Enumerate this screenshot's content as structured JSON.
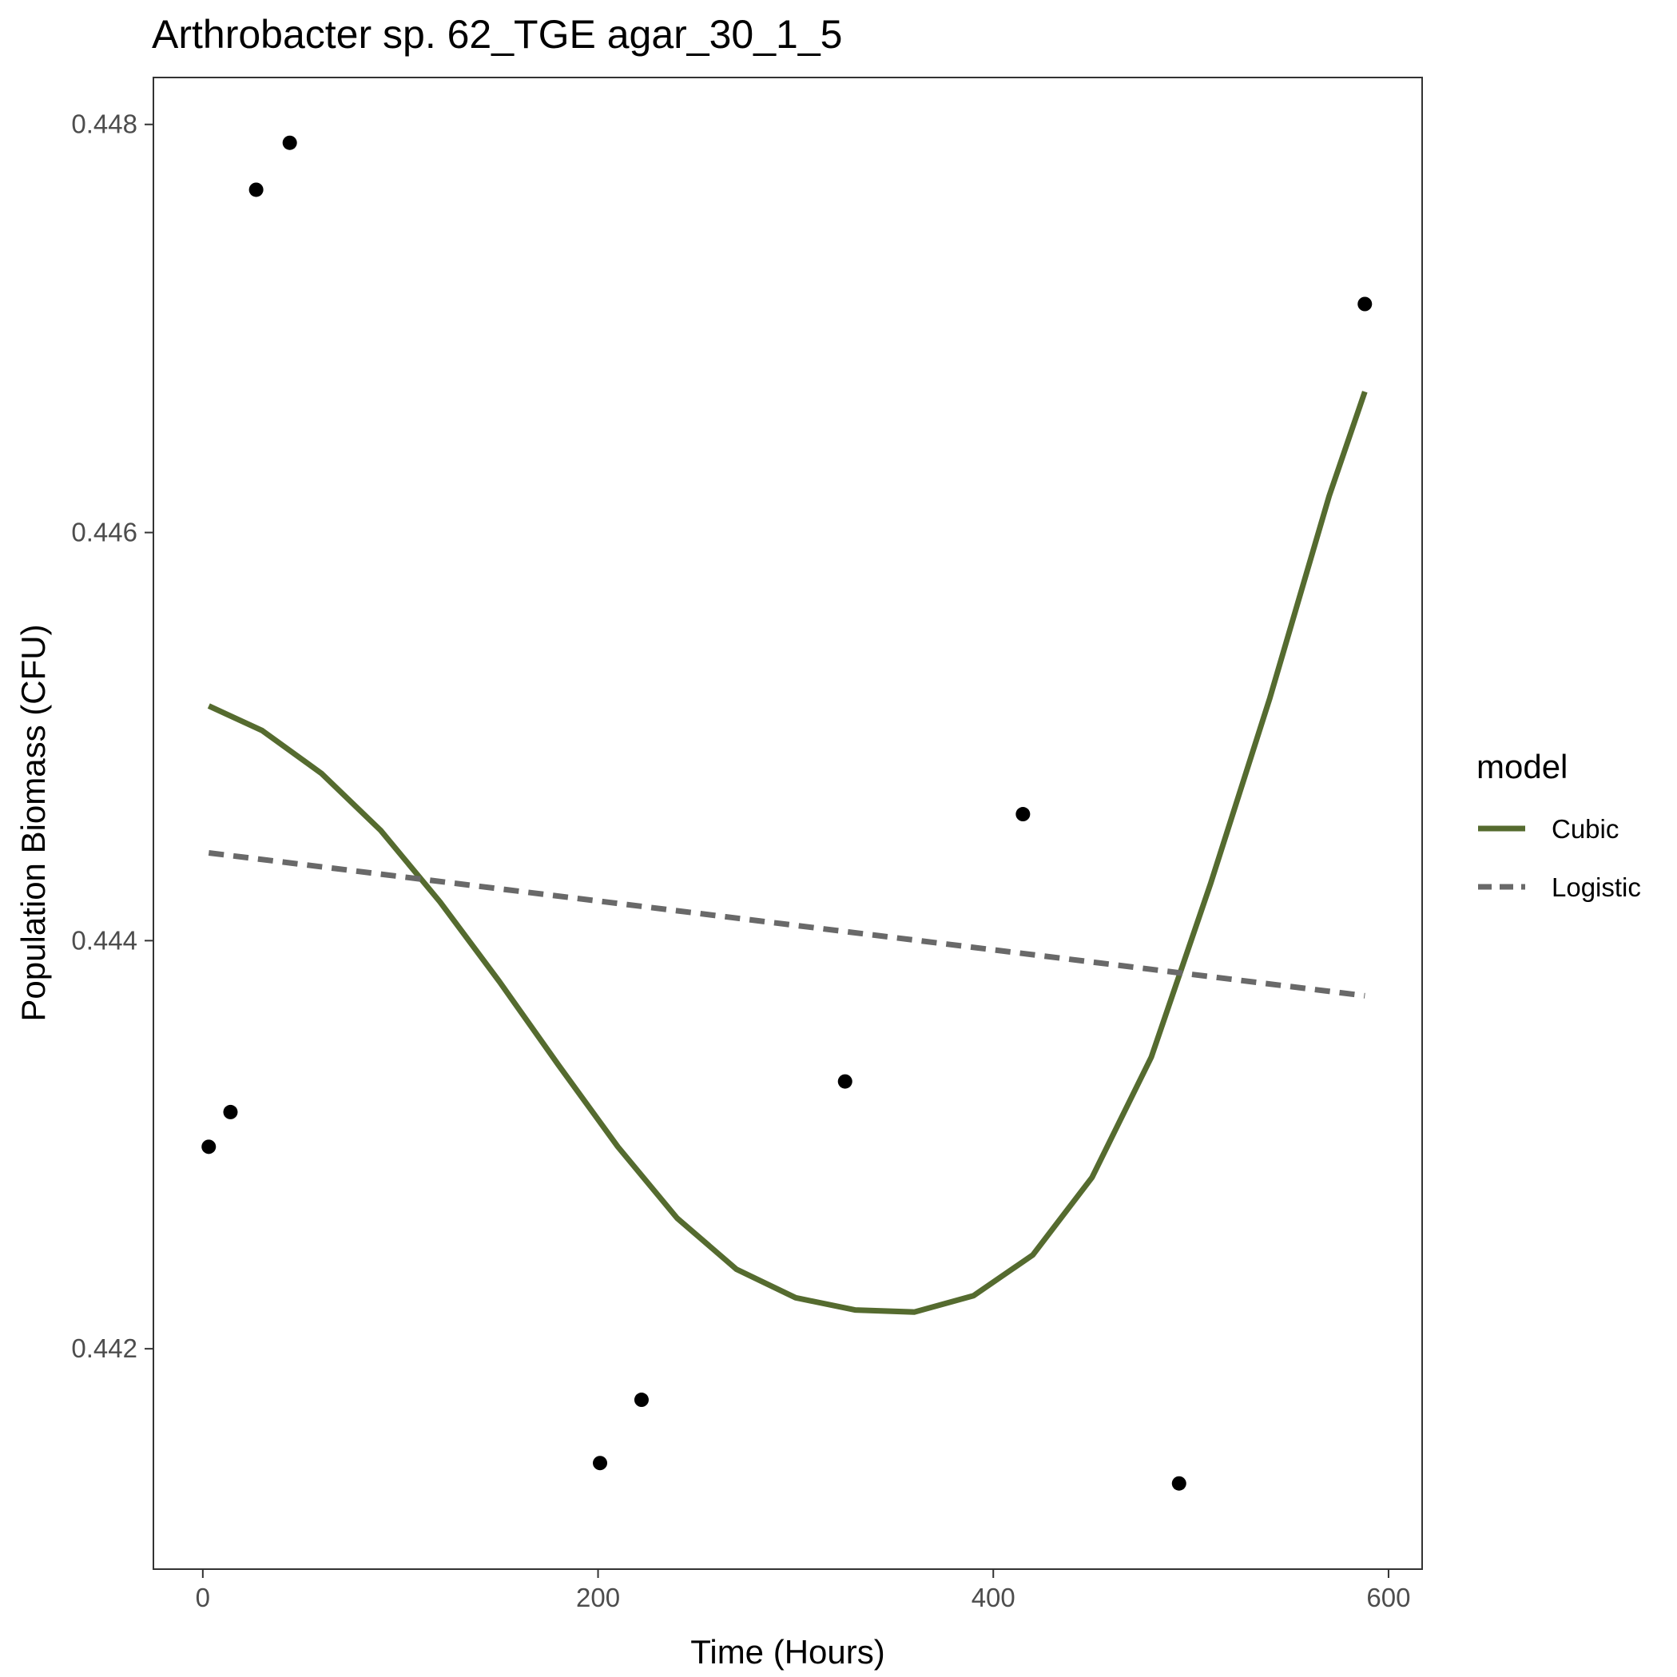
{
  "chart_data": {
    "type": "scatter",
    "title": "Arthrobacter sp. 62_TGE agar_30_1_5",
    "xlabel": "Time (Hours)",
    "ylabel": "Population Biomass (CFU)",
    "xlim": [
      -25,
      617
    ],
    "ylim": [
      0.44092,
      0.44823
    ],
    "x_ticks": [
      0,
      200,
      400,
      600
    ],
    "x_tick_labels": [
      "0",
      "200",
      "400",
      "600"
    ],
    "y_ticks": [
      0.442,
      0.444,
      0.446,
      0.448
    ],
    "y_tick_labels": [
      "0.442",
      "0.444",
      "0.446",
      "0.448"
    ],
    "grid": false,
    "points": {
      "x": [
        3,
        14,
        27,
        44,
        201,
        222,
        325,
        415,
        494,
        588
      ],
      "y": [
        0.44299,
        0.44316,
        0.44768,
        0.44791,
        0.44144,
        0.44175,
        0.44331,
        0.44462,
        0.44134,
        0.44712
      ],
      "color": "#000000"
    },
    "legend": {
      "title": "model",
      "position": "right",
      "entries": [
        {
          "label": "Cubic",
          "color": "#556b2f",
          "style": "solid"
        },
        {
          "label": "Logistic",
          "color": "#696969",
          "style": "dashed"
        }
      ]
    },
    "series": [
      {
        "name": "Cubic",
        "color": "#556b2f",
        "style": "solid",
        "x": [
          3,
          30,
          60,
          90,
          120,
          150,
          180,
          210,
          240,
          270,
          300,
          330,
          360,
          390,
          420,
          450,
          480,
          510,
          540,
          570,
          588
        ],
        "y": [
          0.44515,
          0.44503,
          0.44482,
          0.44454,
          0.44419,
          0.4438,
          0.44339,
          0.44299,
          0.44264,
          0.44239,
          0.44225,
          0.44219,
          0.44218,
          0.44226,
          0.44246,
          0.44284,
          0.44343,
          0.44428,
          0.44519,
          0.44618,
          0.44669
        ]
      },
      {
        "name": "Logistic",
        "color": "#696969",
        "style": "dashed",
        "x": [
          3,
          588
        ],
        "y": [
          0.44443,
          0.44373
        ]
      }
    ]
  }
}
